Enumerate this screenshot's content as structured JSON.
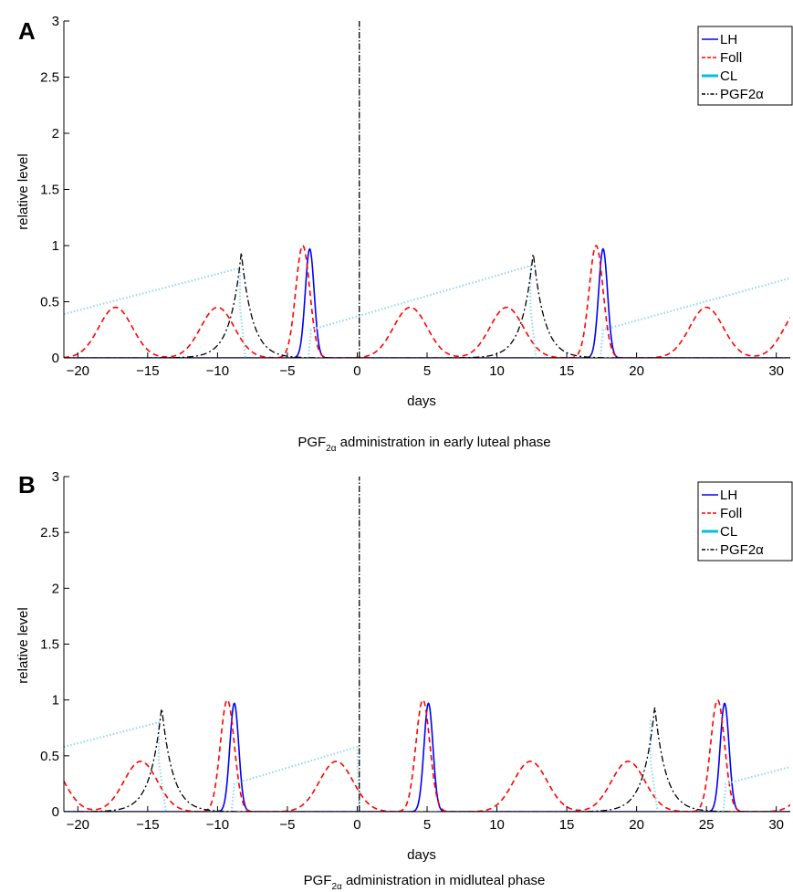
{
  "chart_data": [
    {
      "panel": "A",
      "type": "line",
      "caption": {
        "prefix": "PGF",
        "sub": "2α",
        "suffix": " administration in early luteal phase"
      },
      "xlabel": "days",
      "ylabel": "relative level",
      "xlim": [
        -21,
        31
      ],
      "ylim": [
        0,
        3
      ],
      "xticks": [
        -20,
        -15,
        -10,
        -5,
        0,
        5,
        10,
        15,
        20,
        30
      ],
      "yticks": [
        0,
        0.5,
        1,
        1.5,
        2,
        2.5,
        3
      ],
      "legend_position": "top-right",
      "grid": false,
      "series": [
        {
          "name": "LH",
          "color": "#0000ff",
          "style": "solid",
          "kind": "gauss",
          "peaks": [
            [
              -3.4,
              0.97,
              0.32
            ],
            [
              17.6,
              0.97,
              0.32
            ]
          ]
        },
        {
          "name": "Foll",
          "color": "#ff0000",
          "style": "dashed",
          "kind": "gauss",
          "peaks": [
            [
              -17.3,
              0.45,
              1.2
            ],
            [
              -10,
              0.45,
              1.2
            ],
            [
              -3.9,
              1.0,
              0.5
            ],
            [
              3.8,
              0.45,
              1.2
            ],
            [
              10.7,
              0.45,
              1.2
            ],
            [
              17.1,
              1.0,
              0.5
            ],
            [
              25,
              0.45,
              1.2
            ],
            [
              31.8,
              0.45,
              1.2
            ]
          ]
        },
        {
          "name": "CL",
          "color": "#00bfdf",
          "style": "solid",
          "kind": "dotted-ramp",
          "dot_color": "#99d7ef",
          "segments": [
            [
              [
                -21,
                0.39
              ],
              [
                -8.4,
                0.8
              ],
              [
                -8.4,
                0.45
              ],
              [
                -8.0,
                0.0
              ]
            ],
            [
              [
                -3.5,
                0.0
              ],
              [
                -3.3,
                0.25
              ],
              [
                0,
                0.37
              ],
              [
                12.4,
                0.82
              ],
              [
                12.4,
                0.45
              ],
              [
                12.8,
                0.0
              ]
            ],
            [
              [
                17.4,
                0.0
              ],
              [
                17.6,
                0.25
              ],
              [
                31,
                0.71
              ]
            ]
          ]
        },
        {
          "name": "PGF2α",
          "color": "#000000",
          "style": "dashdot",
          "kind": "lap",
          "peaks": [
            [
              -8.3,
              0.94,
              0.8
            ],
            [
              12.6,
              0.94,
              0.8
            ]
          ],
          "spike": {
            "x": 0.15,
            "y": 3.0
          }
        }
      ]
    },
    {
      "panel": "B",
      "type": "line",
      "caption": {
        "prefix": "PGF",
        "sub": "2α",
        "suffix": " administration in midluteal phase"
      },
      "xlabel": "days",
      "ylabel": "relative level",
      "xlim": [
        -21,
        31
      ],
      "ylim": [
        0,
        3
      ],
      "xticks": [
        -20,
        -15,
        -10,
        -5,
        0,
        5,
        10,
        15,
        20,
        25,
        30
      ],
      "yticks": [
        0,
        0.5,
        1,
        1.5,
        2,
        2.5,
        3
      ],
      "legend_position": "top-right",
      "grid": false,
      "series": [
        {
          "name": "LH",
          "color": "#0000ff",
          "style": "solid",
          "kind": "gauss",
          "peaks": [
            [
              -8.8,
              0.97,
              0.32
            ],
            [
              5.1,
              0.97,
              0.32
            ],
            [
              26.3,
              0.97,
              0.32
            ]
          ]
        },
        {
          "name": "Foll",
          "color": "#ff0000",
          "style": "dashed",
          "kind": "gauss",
          "peaks": [
            [
              -22.2,
              0.45,
              1.2
            ],
            [
              -15.5,
              0.45,
              1.2
            ],
            [
              -9.3,
              1.0,
              0.5
            ],
            [
              -1.5,
              0.45,
              1.2
            ],
            [
              4.7,
              1.0,
              0.5
            ],
            [
              12.4,
              0.45,
              1.2
            ],
            [
              19.4,
              0.45,
              1.2
            ],
            [
              25.8,
              1.0,
              0.5
            ],
            [
              33.4,
              0.45,
              1.2
            ]
          ]
        },
        {
          "name": "CL",
          "color": "#00bfdf",
          "style": "solid",
          "kind": "dotted-ramp",
          "dot_color": "#99d7ef",
          "segments": [
            [
              [
                -21,
                0.58
              ],
              [
                -14.2,
                0.8
              ],
              [
                -14.2,
                0.45
              ],
              [
                -13.7,
                0.0
              ]
            ],
            [
              [
                -9.0,
                0.0
              ],
              [
                -8.8,
                0.25
              ],
              [
                0,
                0.58
              ],
              [
                0.15,
                0.0
              ]
            ],
            [
              [
                21.0,
                0.82
              ],
              [
                21.0,
                0.45
              ],
              [
                21.5,
                0.0
              ]
            ],
            [
              [
                26.2,
                0.0
              ],
              [
                26.4,
                0.25
              ],
              [
                31,
                0.4
              ]
            ]
          ]
        },
        {
          "name": "PGF2α",
          "color": "#000000",
          "style": "dashdot",
          "kind": "lap",
          "peaks": [
            [
              -14.0,
              0.94,
              0.8
            ],
            [
              21.3,
              0.94,
              0.8
            ]
          ],
          "spike": {
            "x": 0.15,
            "y": 3.0
          }
        }
      ]
    }
  ]
}
